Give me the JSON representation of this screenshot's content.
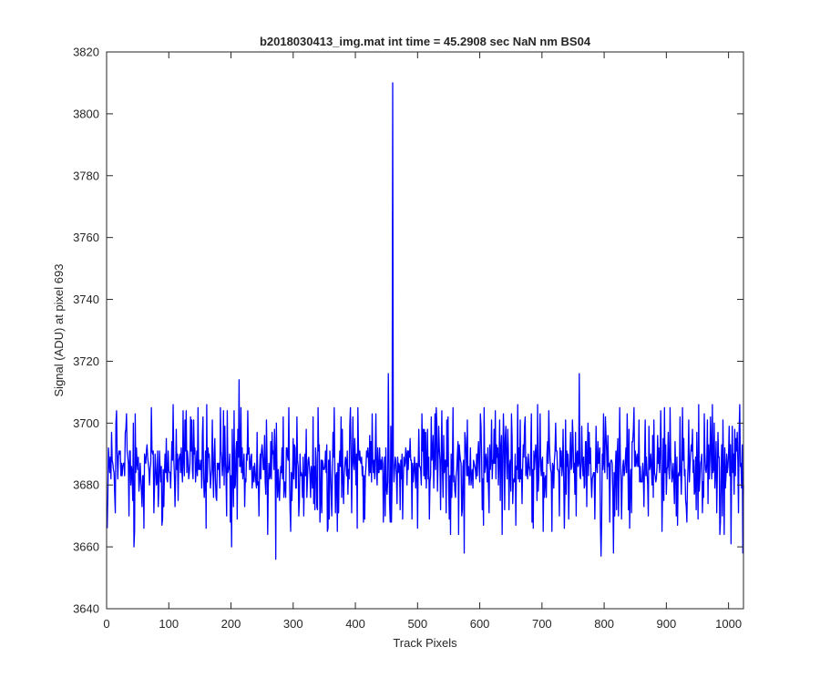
{
  "chart_data": {
    "type": "line",
    "title": "b2018030413_img.mat int time = 45.2908 sec  NaN nm BS04",
    "xlabel": "Track Pixels",
    "ylabel": "Signal (ADU) at pixel 693",
    "xlim": [
      0,
      1024
    ],
    "ylim": [
      3640,
      3820
    ],
    "x_ticks": [
      "0",
      "100",
      "200",
      "300",
      "400",
      "500",
      "600",
      "700",
      "800",
      "900",
      "1000"
    ],
    "y_ticks": [
      "3640",
      "3660",
      "3680",
      "3700",
      "3720",
      "3740",
      "3760",
      "3780",
      "3800",
      "3820"
    ],
    "grid": false,
    "series": [
      {
        "color": "#0000ff",
        "x_start": 1,
        "x_step": 1,
        "point_count": 1024,
        "baseline_mean": 3686,
        "noise_range": [
          3656,
          3716
        ],
        "spikes": [
          {
            "x": 460,
            "y": 3810
          },
          {
            "x": 453,
            "y": 3716
          },
          {
            "x": 760,
            "y": 3716
          },
          {
            "x": 213,
            "y": 3714
          },
          {
            "x": 272,
            "y": 3656
          },
          {
            "x": 795,
            "y": 3657
          },
          {
            "x": 815,
            "y": 3658
          },
          {
            "x": 1023,
            "y": 3658
          },
          {
            "x": 575,
            "y": 3658
          },
          {
            "x": 44,
            "y": 3660
          },
          {
            "x": 201,
            "y": 3660
          },
          {
            "x": 1004,
            "y": 3661
          }
        ]
      }
    ]
  }
}
